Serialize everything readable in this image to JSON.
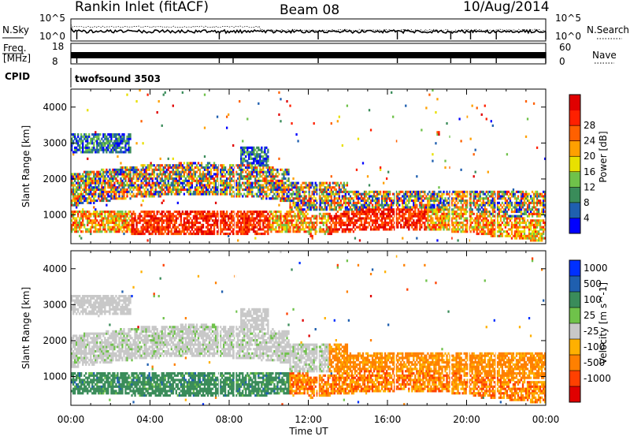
{
  "header": {
    "station": "Rankin Inlet (fitACF)",
    "beam": "Beam 08",
    "date": "10/Aug/2014"
  },
  "status_panel": {
    "nsky_label": "N.Sky",
    "nsearch_label": "N.Search",
    "freq_label_1": "Freq.",
    "freq_label_2": "[MHz]",
    "nave_label": "Nave",
    "cpid_label": "CPID",
    "cpid_value": "twofsound 3503",
    "noise_left_ticks": [
      "10^5",
      "10^0"
    ],
    "noise_right_ticks": [
      "10^5",
      "10^0"
    ],
    "freq_left_ticks": [
      "18",
      "8"
    ],
    "nave_right_ticks": [
      "60",
      "0"
    ]
  },
  "colors": {
    "power_scale": [
      "#0000ff",
      "#1f5faf",
      "#3a8c5a",
      "#6fc24a",
      "#e8e000",
      "#ffa000",
      "#ff6000",
      "#ff2000",
      "#e00000"
    ],
    "velocity_scale": [
      "#0030ff",
      "#1f5faf",
      "#3a8c5a",
      "#6fc24a",
      "#c8c8c8",
      "#ffb000",
      "#ff8000",
      "#ff4000",
      "#e00000"
    ]
  },
  "chart_data": [
    {
      "type": "heatmap",
      "name": "power",
      "ylabel": "Slant Range [km]",
      "y_ticks": [
        1000,
        2000,
        3000,
        4000
      ],
      "ylim": [
        200,
        4500
      ],
      "colorbar_label": "Power [dB]",
      "colorbar_ticks": [
        4,
        8,
        12,
        16,
        20,
        24,
        28
      ],
      "clim": [
        0,
        30
      ]
    },
    {
      "type": "heatmap",
      "name": "velocity",
      "xlabel": "Time UT",
      "x_ticks": [
        "00:00",
        "04:00",
        "08:00",
        "12:00",
        "16:00",
        "20:00",
        "00:00"
      ],
      "xlim_hours": [
        0,
        24
      ],
      "ylabel": "Slant Range [km]",
      "y_ticks": [
        1000,
        2000,
        3000,
        4000
      ],
      "ylim": [
        200,
        4500
      ],
      "colorbar_label": "Velocity [m s^-1]",
      "colorbar_ticks": [
        "1000",
        "500",
        "100",
        "25",
        "-25",
        "-100",
        "-500",
        "-1000"
      ],
      "clim": [
        -1000,
        1000
      ]
    }
  ]
}
